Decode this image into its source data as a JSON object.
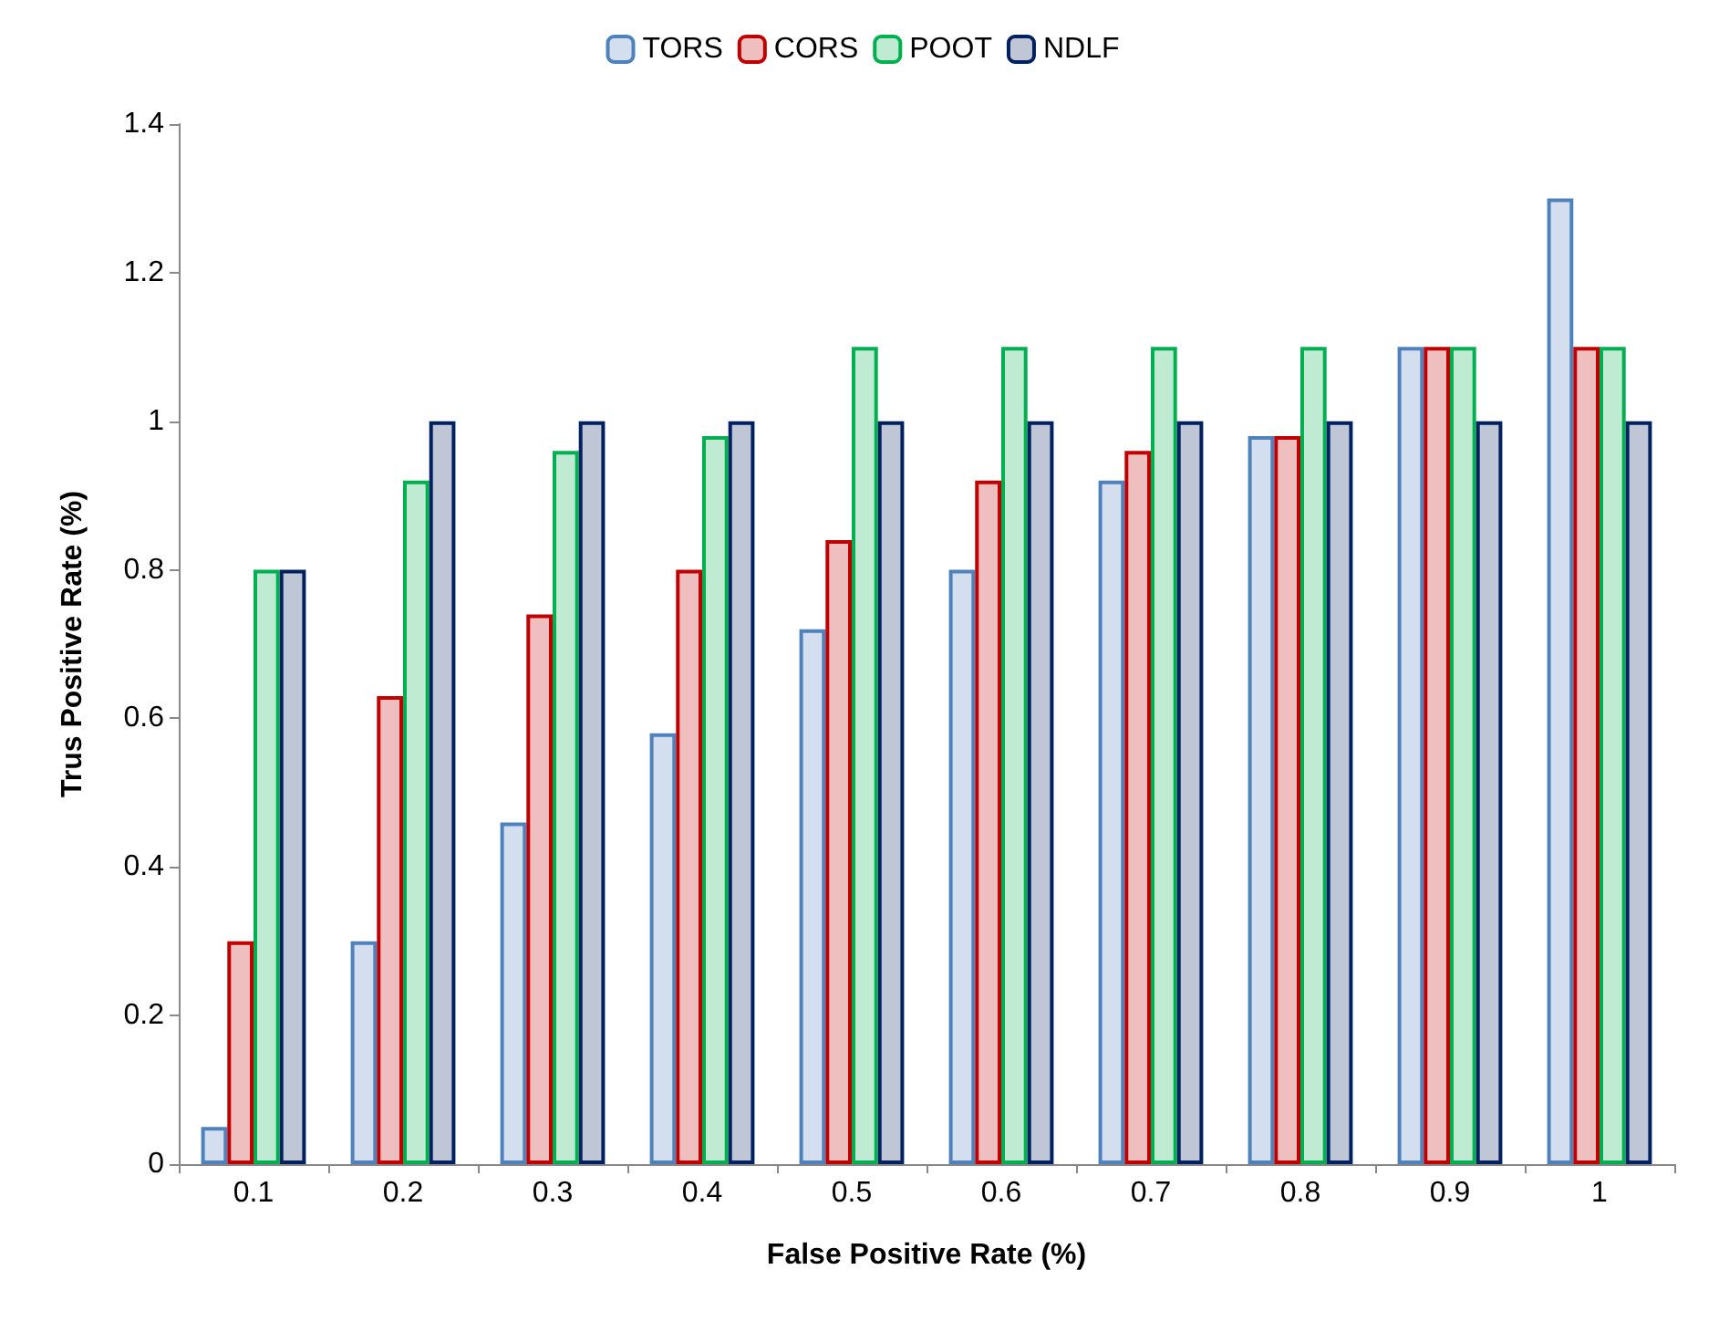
{
  "chart_data": {
    "type": "bar",
    "xlabel": "False Positive Rate (%)",
    "ylabel": "Trus Positive Rate (%)",
    "categories": [
      "0.1",
      "0.2",
      "0.3",
      "0.4",
      "0.5",
      "0.6",
      "0.7",
      "0.8",
      "0.9",
      "1"
    ],
    "series": [
      {
        "name": "TORS",
        "color": "#4f81bd",
        "values": [
          0.05,
          0.3,
          0.46,
          0.58,
          0.72,
          0.8,
          0.92,
          0.98,
          1.1,
          1.3
        ]
      },
      {
        "name": "CORS",
        "color": "#c00000",
        "values": [
          0.3,
          0.63,
          0.74,
          0.8,
          0.84,
          0.92,
          0.96,
          0.98,
          1.1,
          1.1
        ]
      },
      {
        "name": "POOT",
        "color": "#00b050",
        "values": [
          0.8,
          0.92,
          0.96,
          0.98,
          1.1,
          1.1,
          1.1,
          1.1,
          1.1,
          1.1
        ]
      },
      {
        "name": "NDLF",
        "color": "#002060",
        "values": [
          0.8,
          1,
          1,
          1,
          1,
          1,
          1,
          1,
          1,
          1
        ]
      }
    ],
    "ylim": [
      0,
      1.4
    ],
    "yticks": [
      0,
      0.2,
      0.4,
      0.6,
      0.8,
      1,
      1.2,
      1.4
    ],
    "grid": false,
    "legend": "top"
  }
}
